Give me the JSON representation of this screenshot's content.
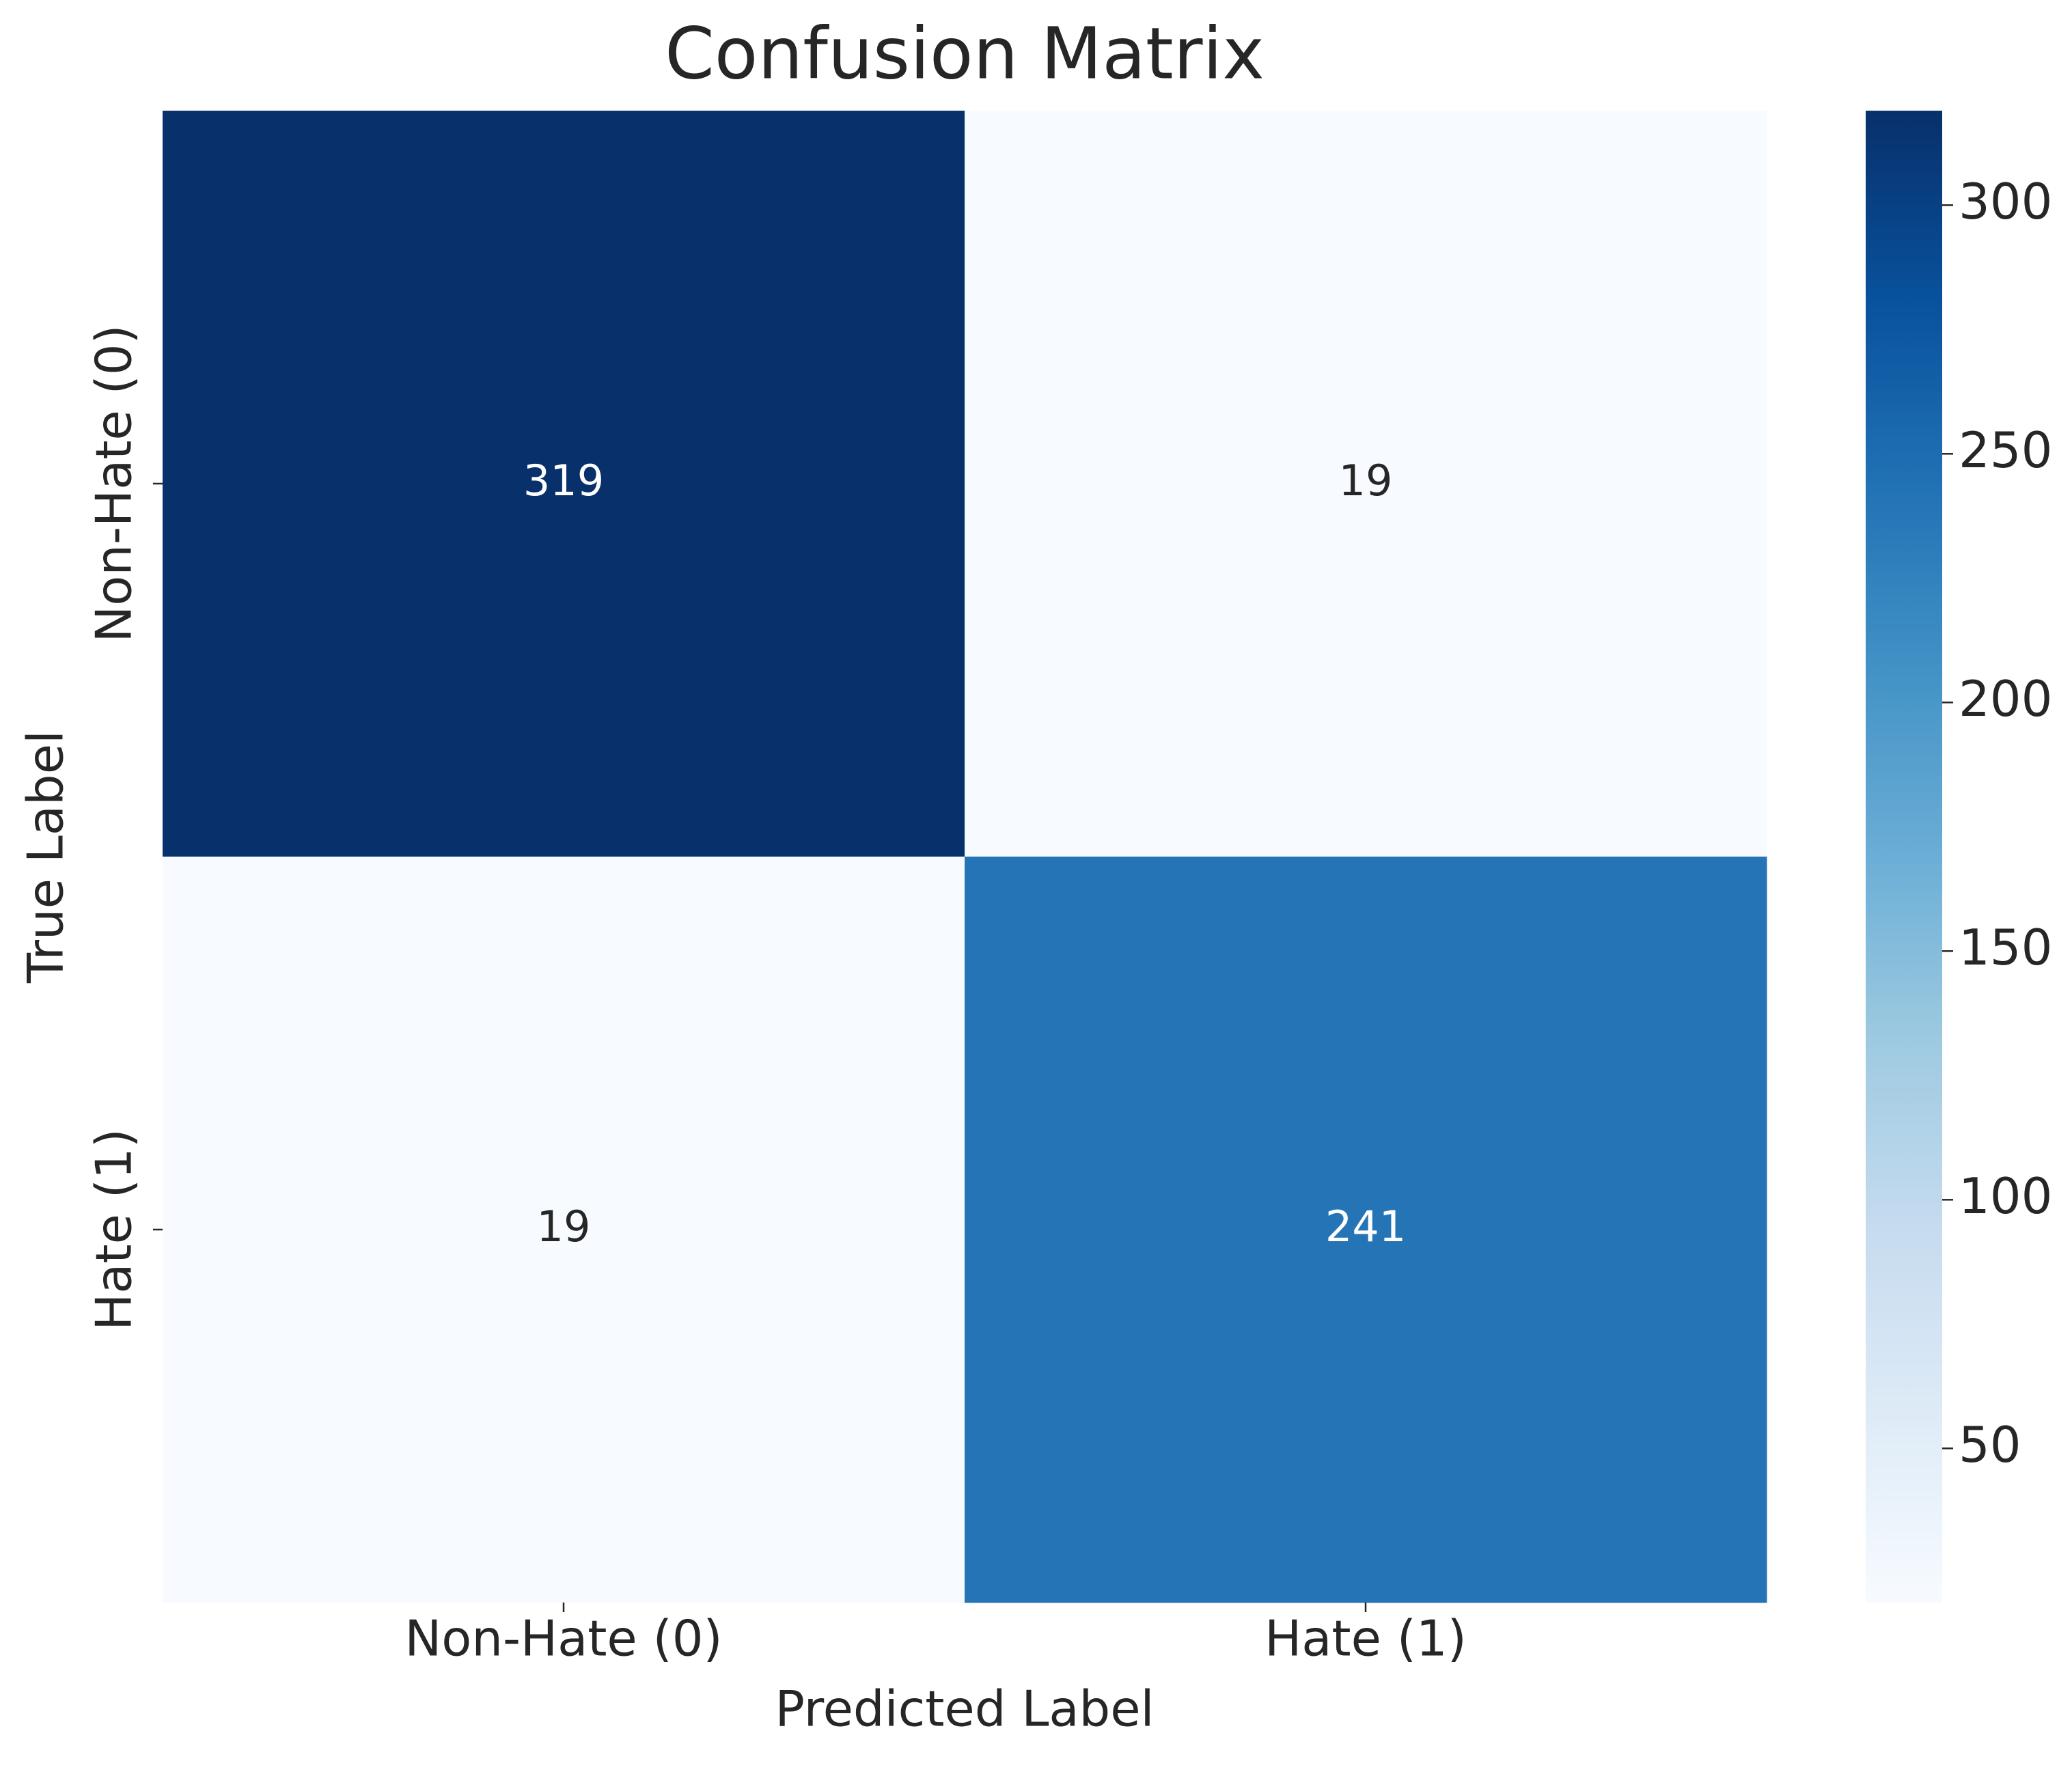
{
  "chart_data": {
    "type": "heatmap",
    "title": "Confusion Matrix",
    "xlabel": "Predicted Label",
    "ylabel": "True Label",
    "x_categories": [
      "Non-Hate (0)",
      "Hate (1)"
    ],
    "y_categories": [
      "Non-Hate (0)",
      "Hate (1)"
    ],
    "values": [
      [
        319,
        19
      ],
      [
        19,
        241
      ]
    ],
    "colormap": "Blues",
    "clim": [
      19,
      319
    ],
    "cticks": [
      50,
      100,
      150,
      200,
      250,
      300
    ]
  }
}
